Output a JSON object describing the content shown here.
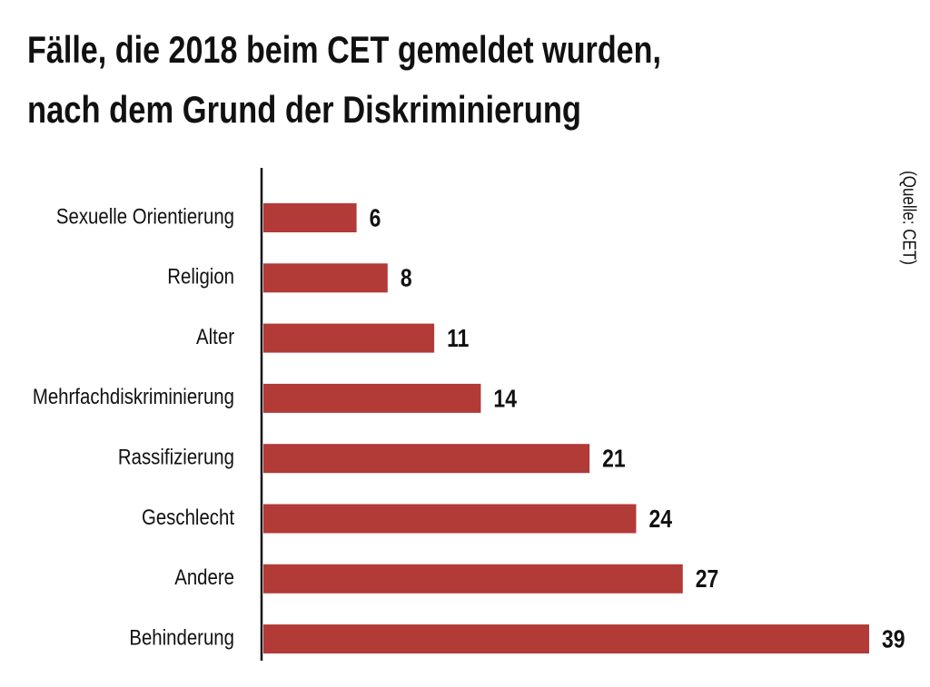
{
  "chart_data": {
    "type": "barh",
    "title": [
      "Fälle, die 2018 beim CET gemeldet wurden,",
      "nach dem Grund der Diskriminierung"
    ],
    "source": "(Quelle: CET)",
    "categories": [
      "Sexuelle Orientierung",
      "Religion",
      "Alter",
      "Mehrfachdiskriminierung",
      "Rassifizierung",
      "Geschlecht",
      "Andere",
      "Behinderung"
    ],
    "values": [
      6,
      8,
      11,
      14,
      21,
      24,
      27,
      39
    ],
    "color": "#b23a37"
  }
}
